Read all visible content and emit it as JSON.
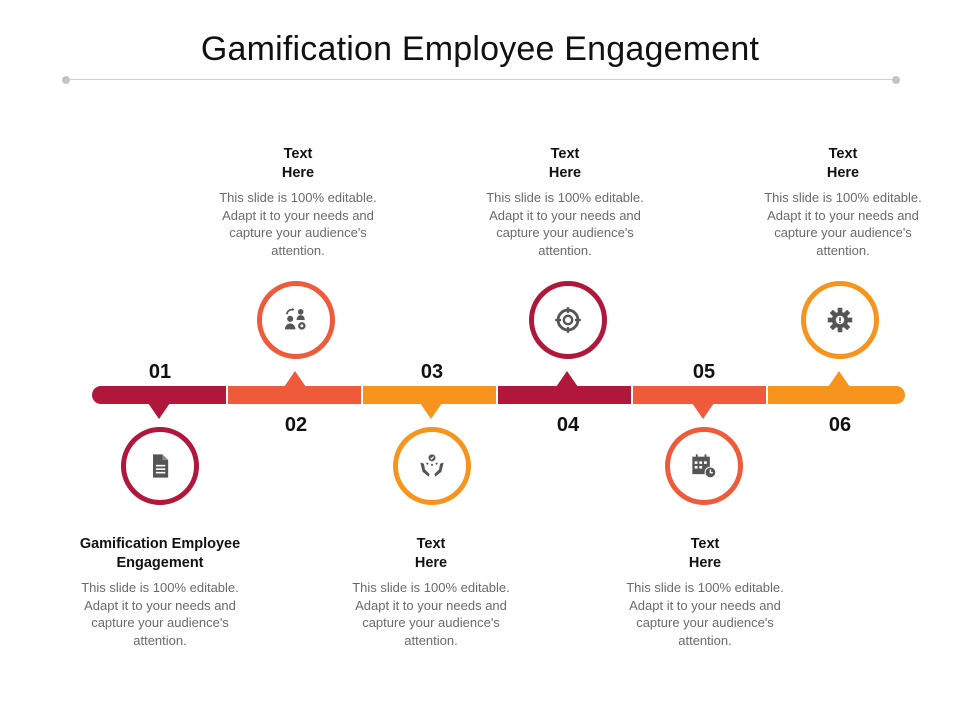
{
  "title": "Gamification Employee Engagement",
  "colors": {
    "crimson": "#b0173a",
    "orange_red": "#ef5a3a",
    "orange": "#f7941e",
    "icon_gray": "#555555",
    "rule_gray": "#d0d0d0"
  },
  "steps": [
    {
      "number": "01",
      "heading": "Gamification Employee Engagement",
      "body": "This slide is 100% editable. Adapt it to your needs and capture your audience's attention.",
      "color": "#b0173a",
      "icon": "document-icon"
    },
    {
      "number": "02",
      "heading": "Text Here",
      "body": "This slide is 100% editable. Adapt it to your needs and capture your audience's attention.",
      "color": "#ef5a3a",
      "icon": "team-settings-icon"
    },
    {
      "number": "03",
      "heading": "Text Here",
      "body": "This slide is 100% editable. Adapt it to your needs and capture your audience's attention.",
      "color": "#f7941e",
      "icon": "hands-award-icon"
    },
    {
      "number": "04",
      "heading": "Text Here",
      "body": "This slide is 100% editable. Adapt it to your needs and capture your audience's attention.",
      "color": "#b0173a",
      "icon": "target-icon"
    },
    {
      "number": "05",
      "heading": "Text Here",
      "body": "This slide is 100% editable. Adapt it to your needs and capture your audience's attention.",
      "color": "#ef5a3a",
      "icon": "calendar-clock-icon"
    },
    {
      "number": "06",
      "heading": "Text Here",
      "body": "This slide is 100% editable. Adapt it to your needs and capture your audience's attention.",
      "color": "#f7941e",
      "icon": "gear-icon"
    }
  ]
}
